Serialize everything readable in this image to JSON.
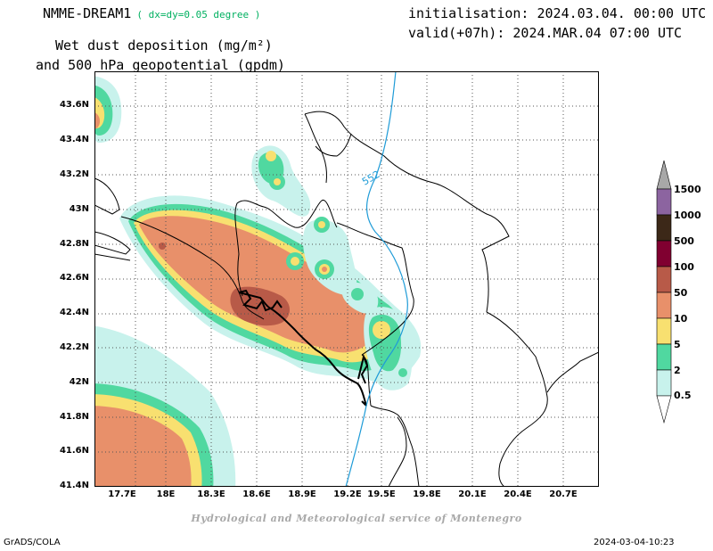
{
  "header": {
    "model": "NMME-DREAM1",
    "resolution": "( dx=dy=0.05 degree )",
    "init": "initialisation: 2024.03.04. 00:00 UTC",
    "valid": "valid(+07h): 2024.MAR.04 07:00 UTC",
    "title_line1": "Wet dust deposition (mg/m²)",
    "title_line2": "and 500 hPa geopotential (gpdm)"
  },
  "map": {
    "lat_labels": [
      "43.6N",
      "43.4N",
      "43.2N",
      "43N",
      "42.8N",
      "42.6N",
      "42.4N",
      "42.2N",
      "42N",
      "41.8N",
      "41.6N",
      "41.4N"
    ],
    "lon_labels": [
      "17.7E",
      "18E",
      "18.3E",
      "18.6E",
      "18.9E",
      "19.2E",
      "19.5E",
      "19.8E",
      "20.1E",
      "20.4E",
      "20.7E"
    ],
    "lat_range": [
      41.4,
      43.8
    ],
    "lon_range": [
      17.5,
      20.85
    ],
    "contour_label": "552",
    "contour_color": "#1e9bd7",
    "border_color": "#000000",
    "grid_style": "dotted"
  },
  "colorbar": {
    "levels": [
      "0.5",
      "2",
      "5",
      "10",
      "50",
      "100",
      "500",
      "1000",
      "1500"
    ],
    "colors": [
      "#c8f2ec",
      "#50d8a0",
      "#f8e070",
      "#e8906a",
      "#b85a48",
      "#800030",
      "#3c2818",
      "#8c64a0",
      "#a8a8a8"
    ]
  },
  "footer": {
    "credit": "Hydrological and Meteorological service of Montenegro",
    "left": "GrADS/COLA",
    "right": "2024-03-04-10:23"
  }
}
